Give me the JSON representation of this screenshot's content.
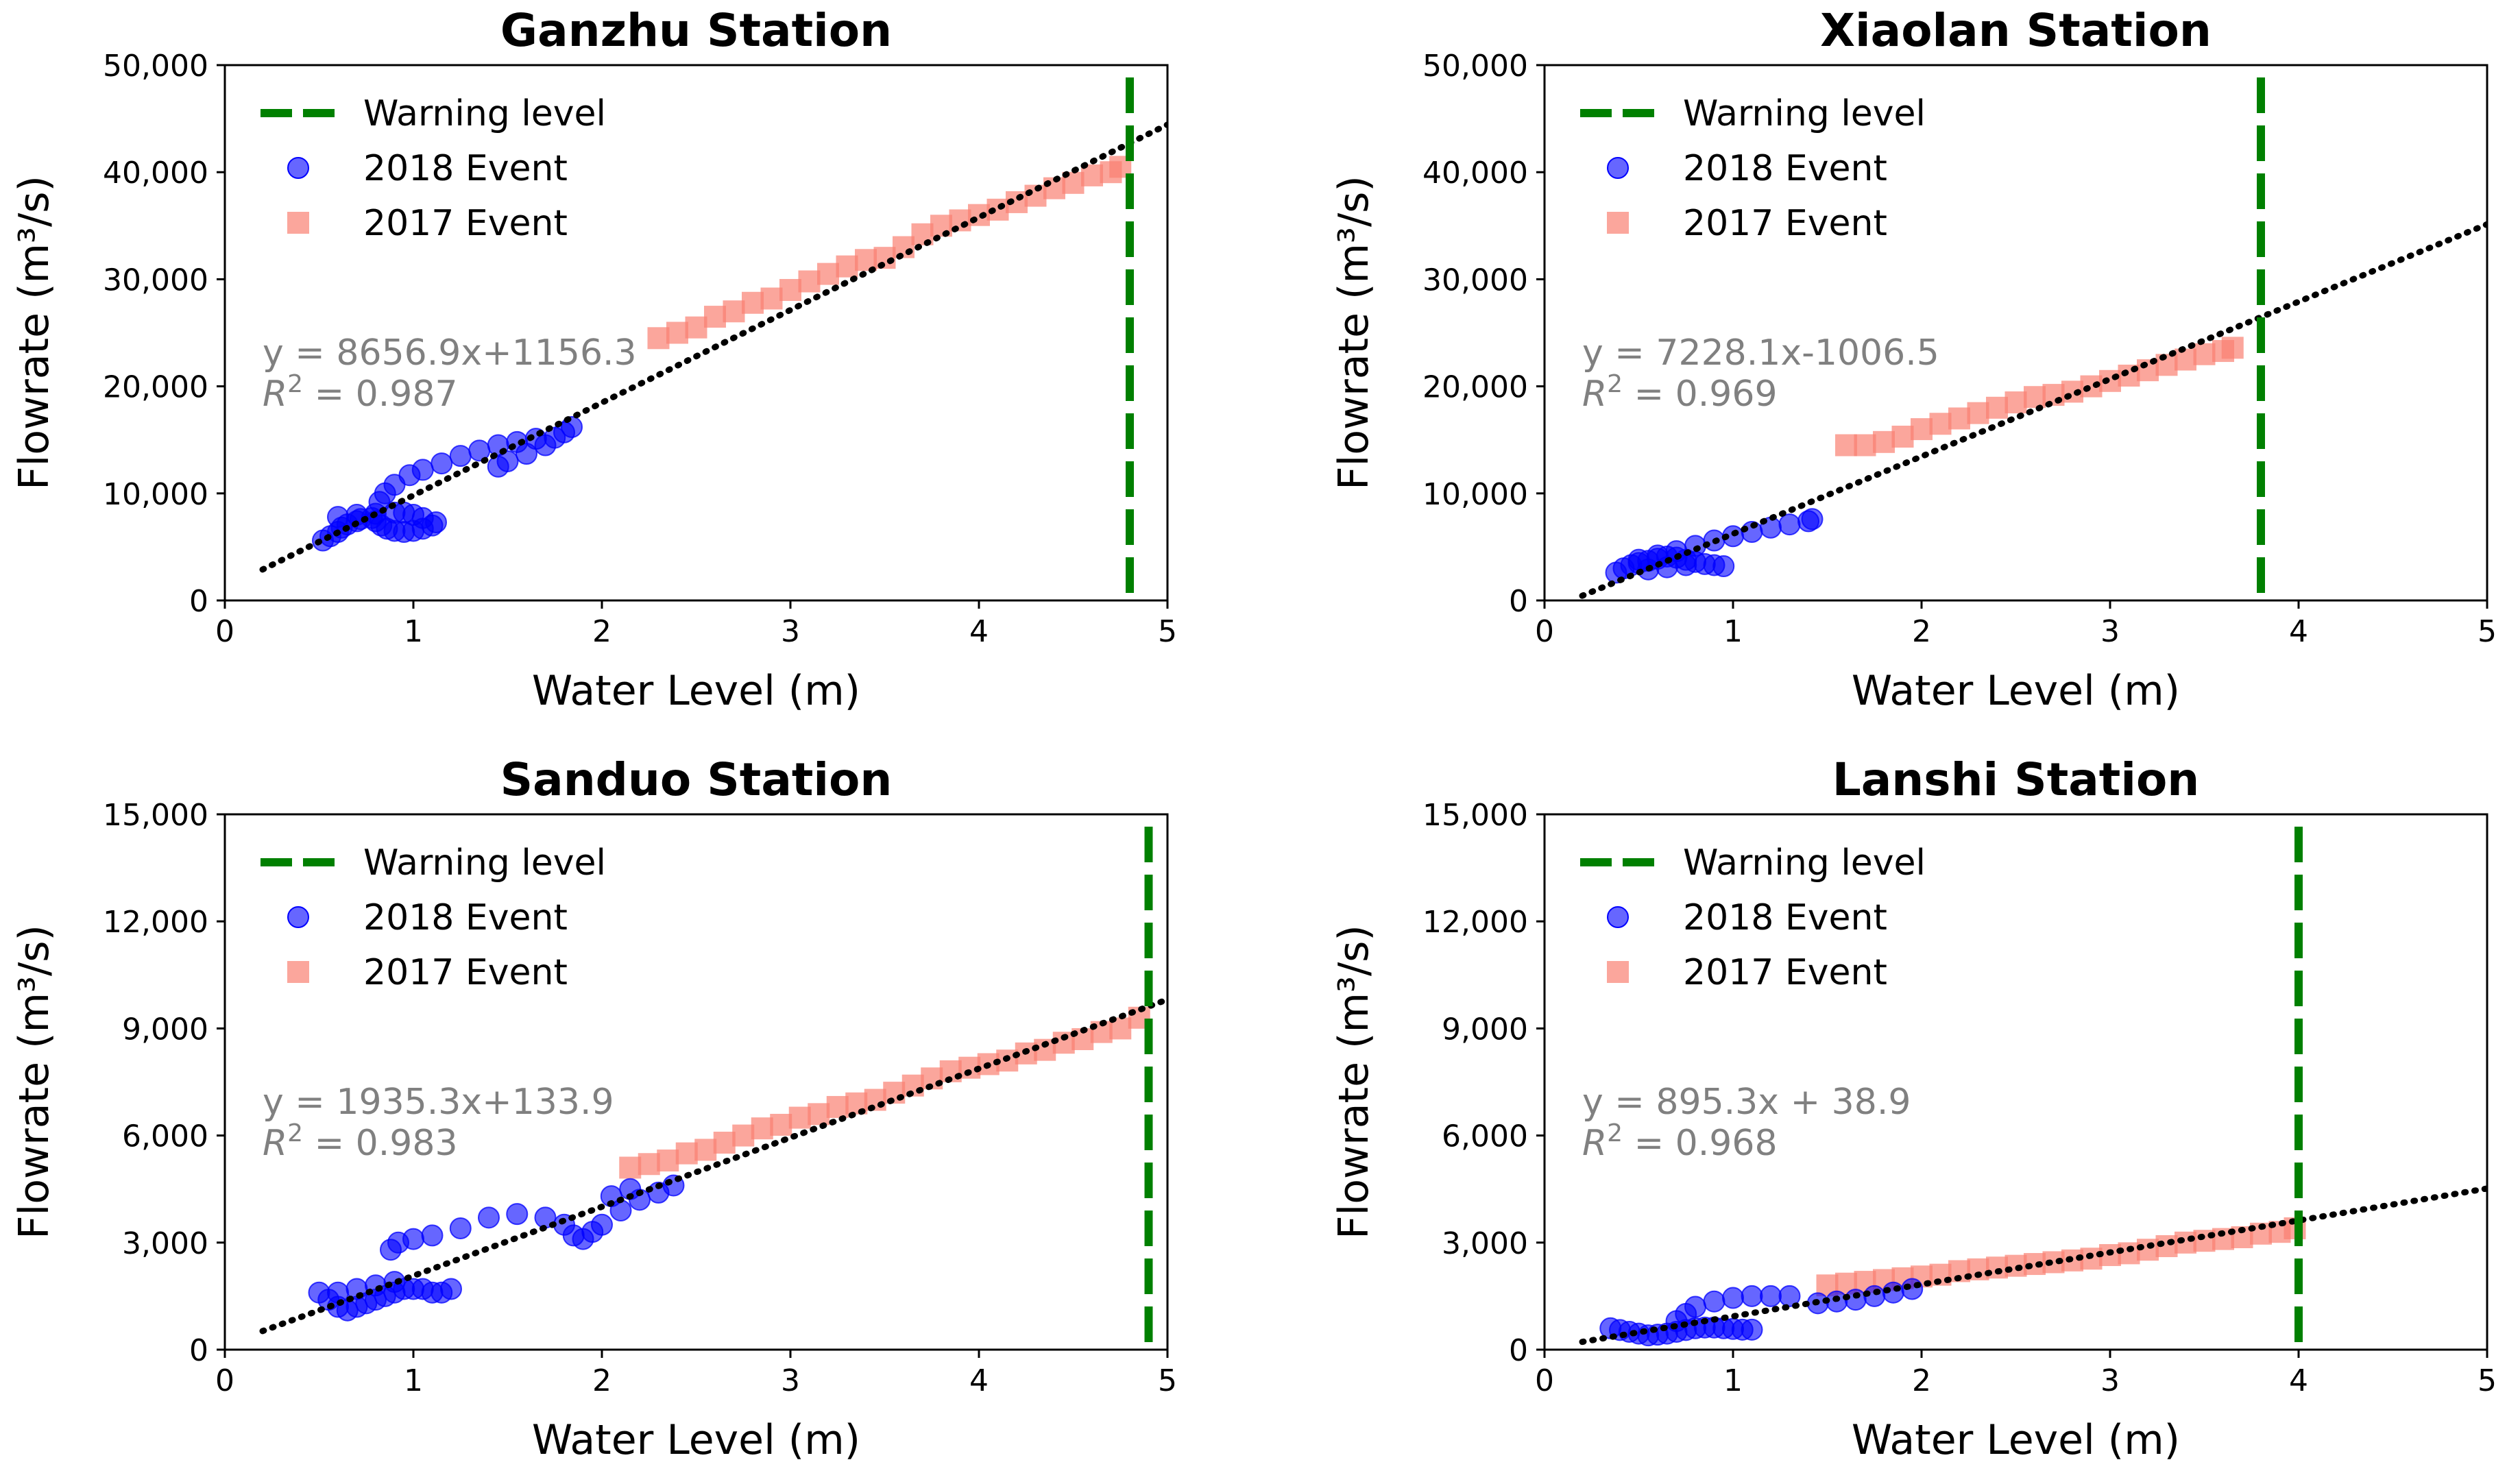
{
  "chart_data": [
    {
      "type": "scatter",
      "title": "Ganzhu Station",
      "xlabel": "Water Level (m)",
      "ylabel": "Flowrate (m³/s)",
      "xlim": [
        0,
        5
      ],
      "ylim": [
        0,
        50000
      ],
      "xticks": [
        "0",
        "1",
        "2",
        "3",
        "4",
        "5"
      ],
      "yticks": [
        "0",
        "10,000",
        "20,000",
        "30,000",
        "40,000",
        "50,000"
      ],
      "legend": [
        "Warning level",
        "2018 Event",
        "2017 Event"
      ],
      "warning_level": 4.8,
      "fit": {
        "slope": 8656.9,
        "intercept": 1156.3,
        "x_range": [
          0.2,
          5.0
        ]
      },
      "equation": "y = 8656.9x+1156.3",
      "r2_label": "R",
      "r2_value": " = 0.987",
      "series": [
        {
          "name": "2018 Event",
          "marker": "circle",
          "color": "#0000ff",
          "x": [
            0.52,
            0.56,
            0.6,
            0.62,
            0.65,
            0.7,
            0.72,
            0.78,
            0.8,
            0.83,
            0.86,
            0.9,
            0.95,
            1.0,
            1.05,
            1.1,
            1.12,
            0.6,
            0.7,
            0.8,
            0.9,
            0.95,
            1.0,
            1.05,
            0.82,
            0.85,
            0.9,
            0.98,
            1.05,
            1.15,
            1.25,
            1.35,
            1.45,
            1.55,
            1.65,
            1.45,
            1.5,
            1.6,
            1.7,
            1.75,
            1.8,
            1.84
          ],
          "y": [
            5600,
            6000,
            6400,
            6800,
            7100,
            7400,
            7600,
            7700,
            7400,
            7000,
            6700,
            6500,
            6400,
            6500,
            6700,
            7000,
            7300,
            7800,
            8000,
            8100,
            8200,
            8200,
            8000,
            7700,
            9200,
            10000,
            10800,
            11700,
            12200,
            12800,
            13500,
            14000,
            14500,
            14800,
            15100,
            12500,
            13000,
            13700,
            14500,
            15200,
            15700,
            16200
          ]
        },
        {
          "name": "2017 Event",
          "marker": "square",
          "color": "#fa8072",
          "x": [
            2.3,
            2.4,
            2.5,
            2.6,
            2.7,
            2.8,
            2.9,
            3.0,
            3.1,
            3.2,
            3.3,
            3.4,
            3.5,
            3.6,
            3.7,
            3.8,
            3.9,
            4.0,
            4.1,
            4.2,
            4.3,
            4.4,
            4.5,
            4.6,
            4.7,
            4.75
          ],
          "y": [
            24500,
            25000,
            25500,
            26500,
            27000,
            27800,
            28200,
            29000,
            29800,
            30500,
            31200,
            31800,
            32000,
            33000,
            34200,
            35000,
            35500,
            36000,
            36500,
            37200,
            37800,
            38500,
            39000,
            39700,
            40000,
            40500
          ]
        }
      ]
    },
    {
      "type": "scatter",
      "title": "Xiaolan Station",
      "xlabel": "Water Level (m)",
      "ylabel": "Flowrate (m³/s)",
      "xlim": [
        0,
        5
      ],
      "ylim": [
        0,
        50000
      ],
      "xticks": [
        "0",
        "1",
        "2",
        "3",
        "4",
        "5"
      ],
      "yticks": [
        "0",
        "10,000",
        "20,000",
        "30,000",
        "40,000",
        "50,000"
      ],
      "legend": [
        "Warning level",
        "2018 Event",
        "2017 Event"
      ],
      "warning_level": 3.8,
      "fit": {
        "slope": 7228.1,
        "intercept": -1006.5,
        "x_range": [
          0.2,
          5.0
        ]
      },
      "equation": "y = 7228.1x-1006.5",
      "r2_label": "R",
      "r2_value": " = 0.969",
      "series": [
        {
          "name": "2018 Event",
          "marker": "circle",
          "color": "#0000ff",
          "x": [
            0.38,
            0.42,
            0.46,
            0.5,
            0.55,
            0.6,
            0.65,
            0.7,
            0.75,
            0.8,
            0.85,
            0.9,
            0.95,
            0.5,
            0.6,
            0.7,
            0.8,
            0.9,
            1.0,
            1.1,
            1.2,
            1.3,
            1.4,
            1.42,
            0.55,
            0.65,
            0.75
          ],
          "y": [
            2600,
            3000,
            3300,
            3500,
            3700,
            3900,
            4100,
            4000,
            3800,
            3600,
            3400,
            3300,
            3200,
            3800,
            4200,
            4600,
            5100,
            5600,
            6000,
            6400,
            6800,
            7100,
            7400,
            7600,
            2900,
            3100,
            3300
          ]
        },
        {
          "name": "2017 Event",
          "marker": "square",
          "color": "#fa8072",
          "x": [
            1.6,
            1.7,
            1.8,
            1.9,
            2.0,
            2.1,
            2.2,
            2.3,
            2.4,
            2.5,
            2.6,
            2.7,
            2.8,
            2.9,
            3.0,
            3.1,
            3.2,
            3.3,
            3.4,
            3.5,
            3.6,
            3.65
          ],
          "y": [
            14500,
            14500,
            14800,
            15300,
            16000,
            16500,
            17000,
            17500,
            18000,
            18500,
            19000,
            19200,
            19500,
            20000,
            20500,
            21000,
            21500,
            22000,
            22500,
            23000,
            23300,
            23600
          ]
        }
      ]
    },
    {
      "type": "scatter",
      "title": "Sanduo Station",
      "xlabel": "Water Level (m)",
      "ylabel": "Flowrate (m³/s)",
      "xlim": [
        0,
        5
      ],
      "ylim": [
        0,
        15000
      ],
      "xticks": [
        "0",
        "1",
        "2",
        "3",
        "4",
        "5"
      ],
      "yticks": [
        "0",
        "3,000",
        "6,000",
        "9,000",
        "12,000",
        "15,000"
      ],
      "legend": [
        "Warning level",
        "2018 Event",
        "2017 Event"
      ],
      "warning_level": 4.9,
      "fit": {
        "slope": 1935.3,
        "intercept": 133.9,
        "x_range": [
          0.2,
          5.0
        ]
      },
      "equation": "y = 1935.3x+133.9",
      "r2_label": "R",
      "r2_value": " = 0.983",
      "series": [
        {
          "name": "2018 Event",
          "marker": "circle",
          "color": "#0000ff",
          "x": [
            0.5,
            0.55,
            0.6,
            0.65,
            0.7,
            0.75,
            0.8,
            0.85,
            0.9,
            0.95,
            1.0,
            1.05,
            1.1,
            1.15,
            1.2,
            0.6,
            0.7,
            0.8,
            0.9,
            0.88,
            0.92,
            1.0,
            1.1,
            1.25,
            1.4,
            1.55,
            1.7,
            1.8,
            1.85,
            1.9,
            1.95,
            2.0,
            2.1,
            2.2,
            2.3,
            2.38,
            2.05,
            2.15
          ],
          "y": [
            1600,
            1400,
            1200,
            1100,
            1200,
            1300,
            1400,
            1500,
            1600,
            1700,
            1700,
            1700,
            1600,
            1600,
            1700,
            1600,
            1700,
            1800,
            1900,
            2800,
            3000,
            3100,
            3200,
            3400,
            3700,
            3800,
            3700,
            3500,
            3200,
            3100,
            3300,
            3500,
            3900,
            4200,
            4400,
            4600,
            4300,
            4500
          ]
        },
        {
          "name": "2017 Event",
          "marker": "square",
          "color": "#fa8072",
          "x": [
            2.15,
            2.25,
            2.35,
            2.45,
            2.55,
            2.65,
            2.75,
            2.85,
            2.95,
            3.05,
            3.15,
            3.25,
            3.35,
            3.45,
            3.55,
            3.65,
            3.75,
            3.85,
            3.95,
            4.05,
            4.15,
            4.25,
            4.35,
            4.45,
            4.55,
            4.65,
            4.75,
            4.85
          ],
          "y": [
            5100,
            5200,
            5300,
            5500,
            5600,
            5800,
            6000,
            6200,
            6300,
            6500,
            6600,
            6800,
            6900,
            7000,
            7200,
            7400,
            7600,
            7800,
            7900,
            8000,
            8100,
            8300,
            8400,
            8600,
            8700,
            8900,
            9000,
            9300
          ]
        }
      ]
    },
    {
      "type": "scatter",
      "title": "Lanshi Station",
      "xlabel": "Water Level (m)",
      "ylabel": "Flowrate (m³/s)",
      "xlim": [
        0,
        5
      ],
      "ylim": [
        0,
        15000
      ],
      "xticks": [
        "0",
        "1",
        "2",
        "3",
        "4",
        "5"
      ],
      "yticks": [
        "0",
        "3,000",
        "6,000",
        "9,000",
        "12,000",
        "15,000"
      ],
      "legend": [
        "Warning level",
        "2018 Event",
        "2017 Event"
      ],
      "warning_level": 4.0,
      "fit": {
        "slope": 895.3,
        "intercept": 38.9,
        "x_range": [
          0.2,
          5.0
        ]
      },
      "equation": "y = 895.3x + 38.9",
      "r2_label": "R",
      "r2_value": " = 0.968",
      "series": [
        {
          "name": "2018 Event",
          "marker": "circle",
          "color": "#0000ff",
          "x": [
            0.35,
            0.4,
            0.45,
            0.5,
            0.55,
            0.6,
            0.65,
            0.7,
            0.75,
            0.8,
            0.85,
            0.9,
            0.95,
            1.0,
            1.05,
            1.1,
            0.7,
            0.75,
            0.8,
            0.9,
            1.0,
            1.1,
            1.2,
            1.3,
            1.45,
            1.55,
            1.65,
            1.75,
            1.85,
            1.95
          ],
          "y": [
            600,
            550,
            500,
            450,
            400,
            420,
            450,
            500,
            550,
            600,
            620,
            620,
            600,
            580,
            560,
            560,
            800,
            1000,
            1200,
            1350,
            1450,
            1500,
            1500,
            1500,
            1300,
            1350,
            1400,
            1500,
            1600,
            1700
          ]
        },
        {
          "name": "2017 Event",
          "marker": "square",
          "color": "#fa8072",
          "x": [
            1.5,
            1.6,
            1.7,
            1.8,
            1.9,
            2.0,
            2.1,
            2.2,
            2.3,
            2.4,
            2.5,
            2.6,
            2.7,
            2.8,
            2.9,
            3.0,
            3.1,
            3.2,
            3.3,
            3.4,
            3.5,
            3.6,
            3.7,
            3.8,
            3.9,
            3.98
          ],
          "y": [
            1800,
            1850,
            1900,
            1950,
            2000,
            2050,
            2100,
            2200,
            2250,
            2300,
            2350,
            2400,
            2450,
            2500,
            2550,
            2650,
            2700,
            2800,
            2900,
            3000,
            3050,
            3100,
            3150,
            3250,
            3300,
            3400
          ]
        }
      ]
    }
  ],
  "colors": {
    "warning": "#008000",
    "event2018": "#0000ff",
    "event2017": "#fa8072",
    "fit_line": "#000000",
    "equation_text": "#808080"
  }
}
